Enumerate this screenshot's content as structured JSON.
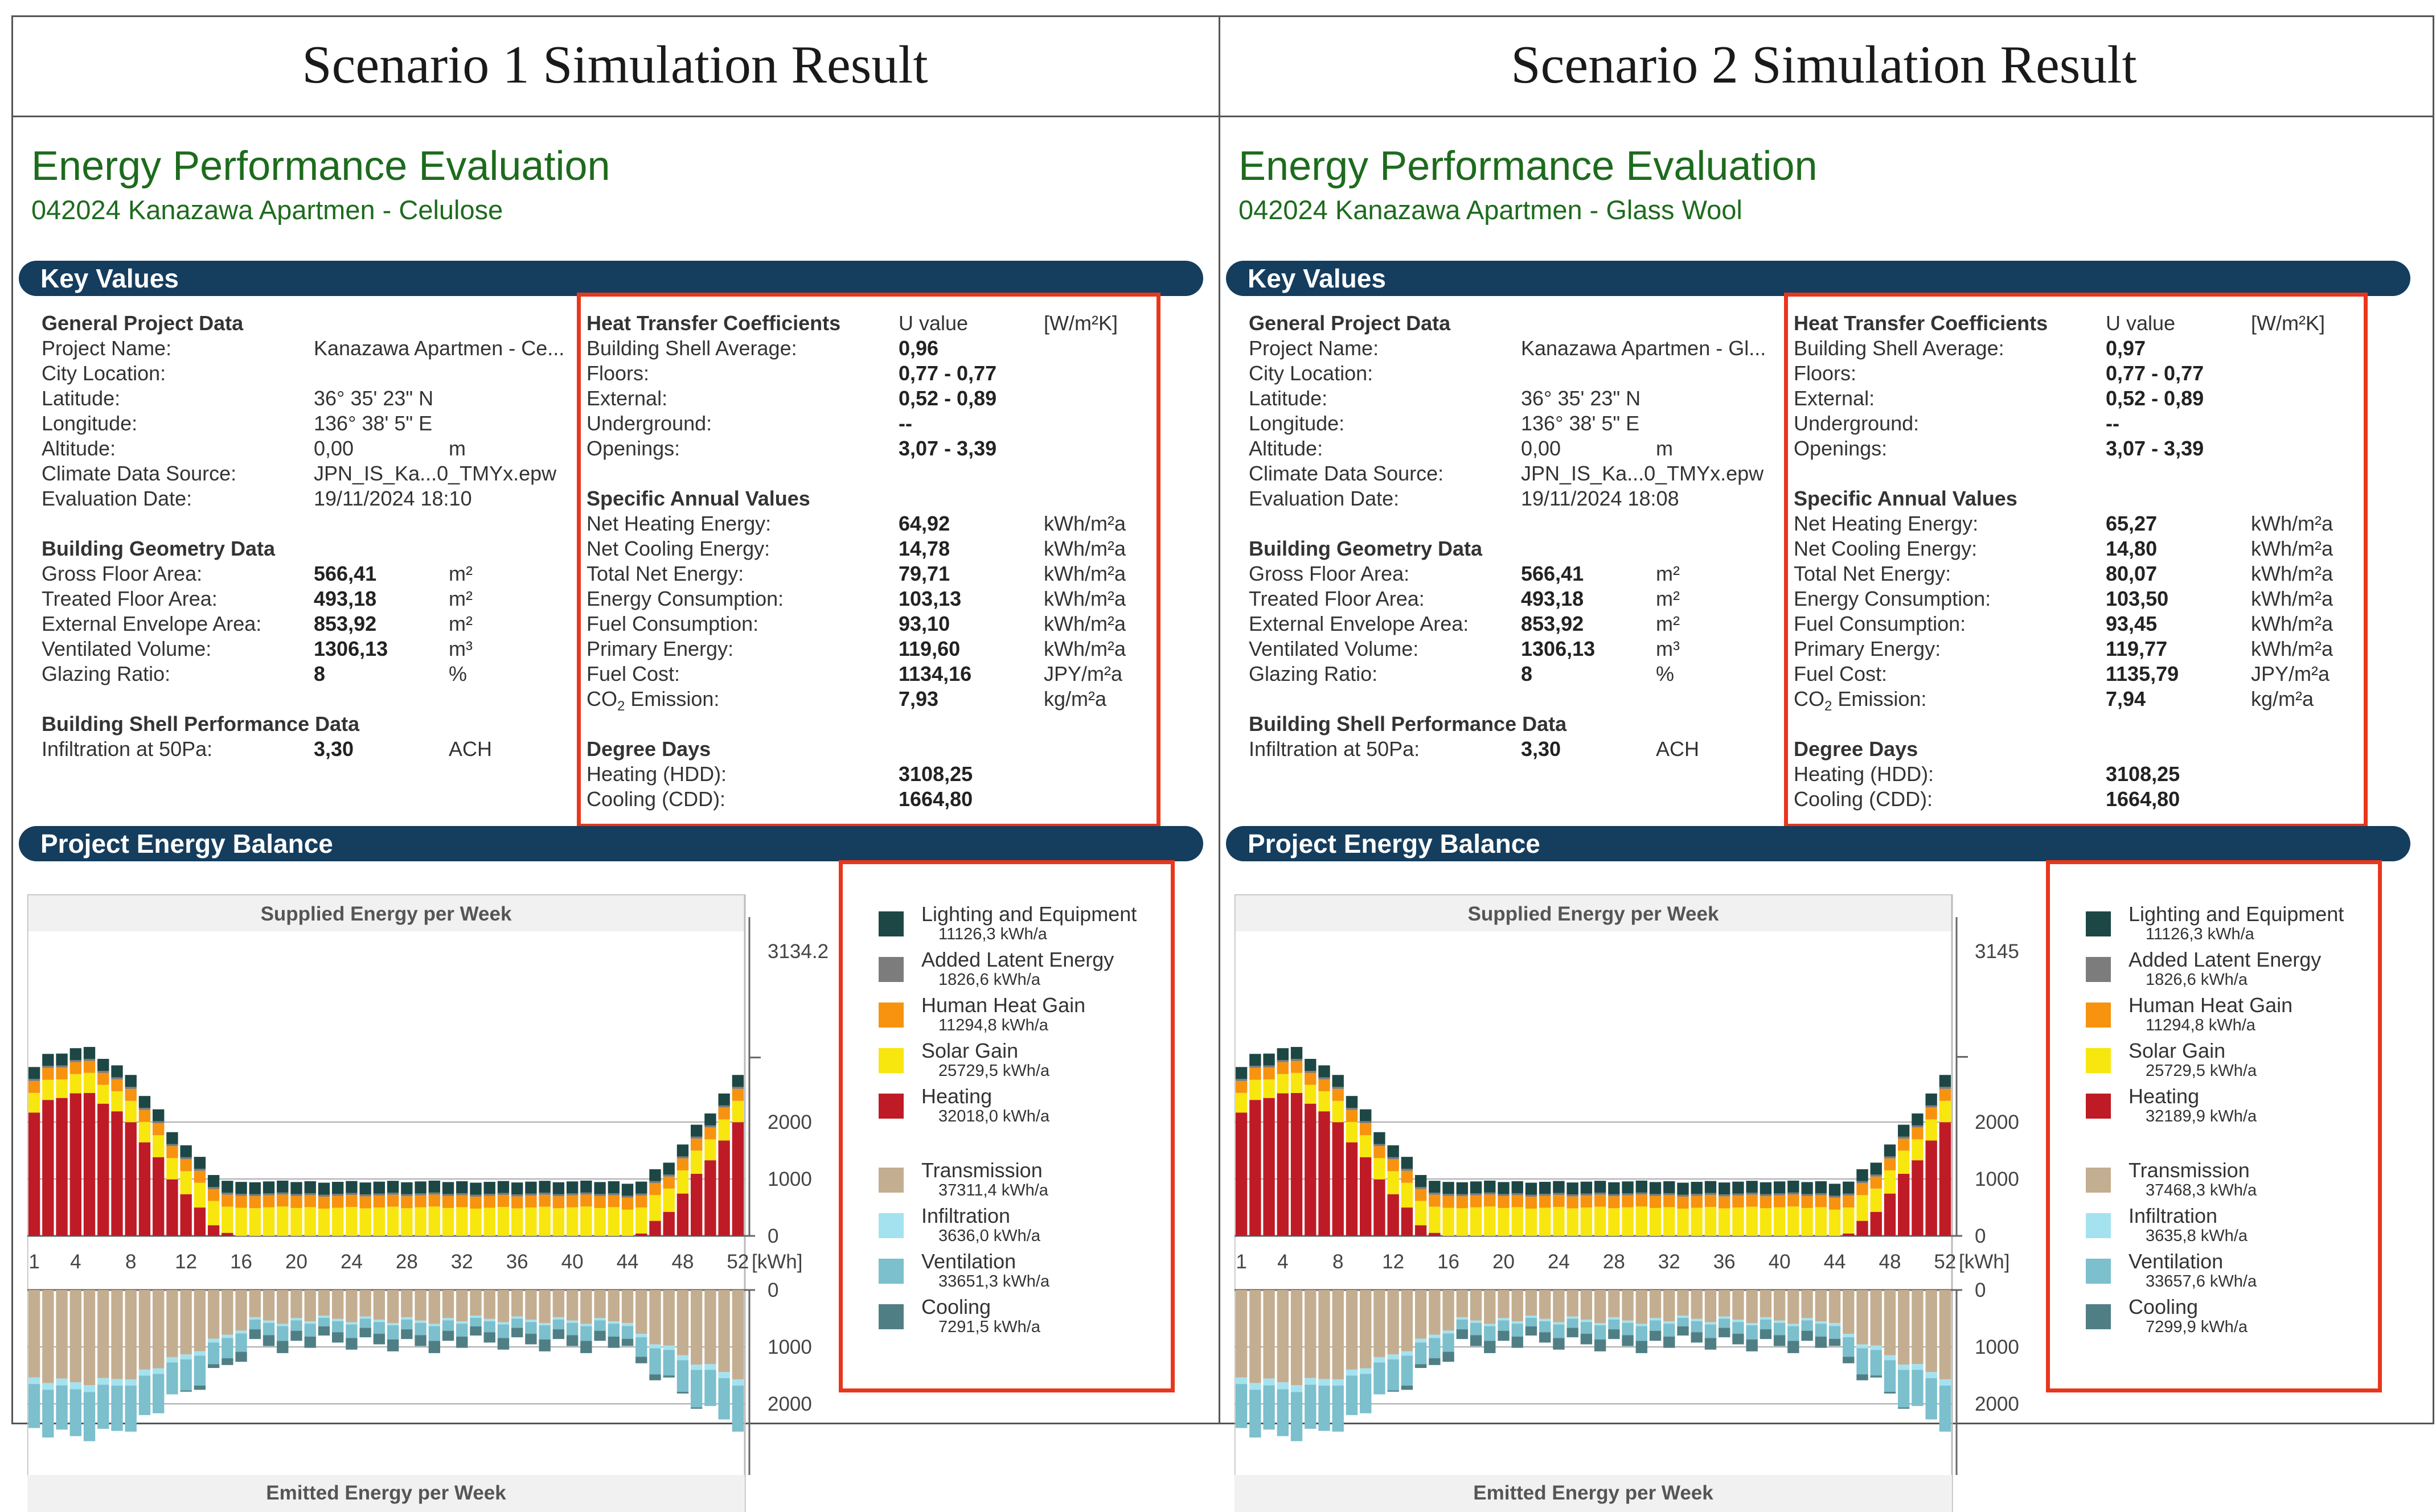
{
  "scenarios": [
    {
      "title": "Scenario 1 Simulation Result",
      "eval_title": "Energy Performance Evaluation",
      "eval_subtitle": "042024 Kanazawa Apartmen - Celulose",
      "key_values_label": "Key Values",
      "general": {
        "heading": "General Project Data",
        "project_name_label": "Project Name:",
        "project_name": "Kanazawa Apartmen - Ce...",
        "city_label": "City Location:",
        "latitude_label": "Latitude:",
        "latitude": "36° 35' 23\" N",
        "longitude_label": "Longitude:",
        "longitude": "136° 38' 5\" E",
        "altitude_label": "Altitude:",
        "altitude": "0,00",
        "altitude_unit": "m",
        "climate_label": "Climate Data Source:",
        "climate": "JPN_IS_Ka...0_TMYx.epw",
        "date_label": "Evaluation Date:",
        "date": "19/11/2024 18:10"
      },
      "geometry": {
        "heading": "Building Geometry Data",
        "gross_label": "Gross Floor Area:",
        "gross": "566,41",
        "gross_unit": "m²",
        "treated_label": "Treated Floor Area:",
        "treated": "493,18",
        "treated_unit": "m²",
        "envelope_label": "External Envelope Area:",
        "envelope": "853,92",
        "envelope_unit": "m²",
        "volume_label": "Ventilated Volume:",
        "volume": "1306,13",
        "volume_unit": "m³",
        "glazing_label": "Glazing Ratio:",
        "glazing": "8",
        "glazing_unit": "%"
      },
      "shell": {
        "heading": "Building Shell Performance Data",
        "infil_label": "Infiltration at 50Pa:",
        "infil": "3,30",
        "infil_unit": "ACH"
      },
      "htc": {
        "heading": "Heat Transfer Coefficients",
        "col_label": "U value",
        "unit": "[W/m²K]",
        "avg_label": "Building Shell Average:",
        "avg": "0,96",
        "floors_label": "Floors:",
        "floors": "0,77 - 0,77",
        "external_label": "External:",
        "external": "0,52 - 0,89",
        "underground_label": "Underground:",
        "underground": "--",
        "openings_label": "Openings:",
        "openings": "3,07 - 3,39"
      },
      "specific": {
        "heading": "Specific Annual Values",
        "rows": [
          {
            "label": "Net Heating Energy:",
            "value": "64,92",
            "unit": "kWh/m²a"
          },
          {
            "label": "Net Cooling Energy:",
            "value": "14,78",
            "unit": "kWh/m²a"
          },
          {
            "label": "Total Net Energy:",
            "value": "79,71",
            "unit": "kWh/m²a"
          },
          {
            "label": "Energy Consumption:",
            "value": "103,13",
            "unit": "kWh/m²a"
          },
          {
            "label": "Fuel Consumption:",
            "value": "93,10",
            "unit": "kWh/m²a"
          },
          {
            "label": "Primary Energy:",
            "value": "119,60",
            "unit": "kWh/m²a"
          },
          {
            "label": "Fuel Cost:",
            "value": "1134,16",
            "unit": "JPY/m²a"
          }
        ],
        "co2_label": "CO",
        "co2_sub": "2",
        "co2_label_rest": " Emission:",
        "co2": "7,93",
        "co2_unit": "kg/m²a"
      },
      "degree": {
        "heading": "Degree Days",
        "hdd_label": "Heating (HDD):",
        "hdd": "3108,25",
        "cdd_label": "Cooling (CDD):",
        "cdd": "1664,80"
      },
      "balance_label": "Project Energy Balance",
      "chart_data": {
        "type": "bar",
        "title": "Supplied Energy per Week",
        "bottom_title": "Emitted Energy per Week",
        "max_label": "3134.2",
        "max_value": 3134.2,
        "top_ticks": [
          "2000",
          "1000",
          "0"
        ],
        "bottom_ticks": [
          "0",
          "1000",
          "2000"
        ],
        "unit_label": "[kWh]",
        "x_ticks": [
          "1",
          "4",
          "8",
          "12",
          "16",
          "20",
          "24",
          "28",
          "32",
          "36",
          "40",
          "44",
          "48",
          "52"
        ],
        "supplied_series": [
          "Heating",
          "Solar Gain",
          "Human Heat Gain",
          "Added Latent Energy",
          "Lighting and Equipment"
        ],
        "emitted_series": [
          "Transmission",
          "Infiltration",
          "Ventilation",
          "Cooling"
        ],
        "weeks": 52
      },
      "legend": [
        {
          "name": "Lighting and Equipment",
          "value": "11126,3 kWh/a",
          "color": "#1d4744"
        },
        {
          "name": "Added Latent Energy",
          "value": "1826,6 kWh/a",
          "color": "#7c7c7c"
        },
        {
          "name": "Human Heat Gain",
          "value": "11294,8 kWh/a",
          "color": "#f7930f"
        },
        {
          "name": "Solar Gain",
          "value": "25729,5 kWh/a",
          "color": "#f8e60f"
        },
        {
          "name": "Heating",
          "value": "32018,0 kWh/a",
          "color": "#bf1b26"
        },
        {
          "name": "Transmission",
          "value": "37311,4 kWh/a",
          "color": "#c4ae91"
        },
        {
          "name": "Infiltration",
          "value": "3636,0 kWh/a",
          "color": "#a5e2ef"
        },
        {
          "name": "Ventilation",
          "value": "33651,3 kWh/a",
          "color": "#7cbfcd"
        },
        {
          "name": "Cooling",
          "value": "7291,5 kWh/a",
          "color": "#4f7f85"
        }
      ]
    },
    {
      "title": "Scenario 2 Simulation Result",
      "eval_title": "Energy Performance Evaluation",
      "eval_subtitle": "042024 Kanazawa Apartmen - Glass Wool",
      "key_values_label": "Key Values",
      "general": {
        "heading": "General Project Data",
        "project_name_label": "Project Name:",
        "project_name": "Kanazawa Apartmen - Gl...",
        "city_label": "City Location:",
        "latitude_label": "Latitude:",
        "latitude": "36° 35' 23\" N",
        "longitude_label": "Longitude:",
        "longitude": "136° 38' 5\" E",
        "altitude_label": "Altitude:",
        "altitude": "0,00",
        "altitude_unit": "m",
        "climate_label": "Climate Data Source:",
        "climate": "JPN_IS_Ka...0_TMYx.epw",
        "date_label": "Evaluation Date:",
        "date": "19/11/2024 18:08"
      },
      "geometry": {
        "heading": "Building Geometry Data",
        "gross_label": "Gross Floor Area:",
        "gross": "566,41",
        "gross_unit": "m²",
        "treated_label": "Treated Floor Area:",
        "treated": "493,18",
        "treated_unit": "m²",
        "envelope_label": "External Envelope Area:",
        "envelope": "853,92",
        "envelope_unit": "m²",
        "volume_label": "Ventilated Volume:",
        "volume": "1306,13",
        "volume_unit": "m³",
        "glazing_label": "Glazing Ratio:",
        "glazing": "8",
        "glazing_unit": "%"
      },
      "shell": {
        "heading": "Building Shell Performance Data",
        "infil_label": "Infiltration at 50Pa:",
        "infil": "3,30",
        "infil_unit": "ACH"
      },
      "htc": {
        "heading": "Heat Transfer Coefficients",
        "col_label": "U value",
        "unit": "[W/m²K]",
        "avg_label": "Building Shell Average:",
        "avg": "0,97",
        "floors_label": "Floors:",
        "floors": "0,77 - 0,77",
        "external_label": "External:",
        "external": "0,52 - 0,89",
        "underground_label": "Underground:",
        "underground": "--",
        "openings_label": "Openings:",
        "openings": "3,07 - 3,39"
      },
      "specific": {
        "heading": "Specific Annual Values",
        "rows": [
          {
            "label": "Net Heating Energy:",
            "value": "65,27",
            "unit": "kWh/m²a"
          },
          {
            "label": "Net Cooling Energy:",
            "value": "14,80",
            "unit": "kWh/m²a"
          },
          {
            "label": "Total Net Energy:",
            "value": "80,07",
            "unit": "kWh/m²a"
          },
          {
            "label": "Energy Consumption:",
            "value": "103,50",
            "unit": "kWh/m²a"
          },
          {
            "label": "Fuel Consumption:",
            "value": "93,45",
            "unit": "kWh/m²a"
          },
          {
            "label": "Primary Energy:",
            "value": "119,77",
            "unit": "kWh/m²a"
          },
          {
            "label": "Fuel Cost:",
            "value": "1135,79",
            "unit": "JPY/m²a"
          }
        ],
        "co2_label": "CO",
        "co2_sub": "2",
        "co2_label_rest": " Emission:",
        "co2": "7,94",
        "co2_unit": "kg/m²a"
      },
      "degree": {
        "heading": "Degree Days",
        "hdd_label": "Heating (HDD):",
        "hdd": "3108,25",
        "cdd_label": "Cooling (CDD):",
        "cdd": "1664,80"
      },
      "balance_label": "Project Energy Balance",
      "chart_data": {
        "type": "bar",
        "title": "Supplied Energy per Week",
        "bottom_title": "Emitted Energy per Week",
        "max_label": "3145",
        "max_value": 3145,
        "top_ticks": [
          "2000",
          "1000",
          "0"
        ],
        "bottom_ticks": [
          "0",
          "1000",
          "2000"
        ],
        "unit_label": "[kWh]",
        "x_ticks": [
          "1",
          "4",
          "8",
          "12",
          "16",
          "20",
          "24",
          "28",
          "32",
          "36",
          "40",
          "44",
          "48",
          "52"
        ],
        "supplied_series": [
          "Heating",
          "Solar Gain",
          "Human Heat Gain",
          "Added Latent Energy",
          "Lighting and Equipment"
        ],
        "emitted_series": [
          "Transmission",
          "Infiltration",
          "Ventilation",
          "Cooling"
        ],
        "weeks": 52
      },
      "legend": [
        {
          "name": "Lighting and Equipment",
          "value": "11126,3 kWh/a",
          "color": "#1d4744"
        },
        {
          "name": "Added Latent Energy",
          "value": "1826,6 kWh/a",
          "color": "#7c7c7c"
        },
        {
          "name": "Human Heat Gain",
          "value": "11294,8 kWh/a",
          "color": "#f7930f"
        },
        {
          "name": "Solar Gain",
          "value": "25729,5 kWh/a",
          "color": "#f8e60f"
        },
        {
          "name": "Heating",
          "value": "32189,9 kWh/a",
          "color": "#bf1b26"
        },
        {
          "name": "Transmission",
          "value": "37468,3 kWh/a",
          "color": "#c4ae91"
        },
        {
          "name": "Infiltration",
          "value": "3635,8 kWh/a",
          "color": "#a5e2ef"
        },
        {
          "name": "Ventilation",
          "value": "33657,6 kWh/a",
          "color": "#7cbfcd"
        },
        {
          "name": "Cooling",
          "value": "7299,9 kWh/a",
          "color": "#4f7f85"
        }
      ]
    }
  ]
}
